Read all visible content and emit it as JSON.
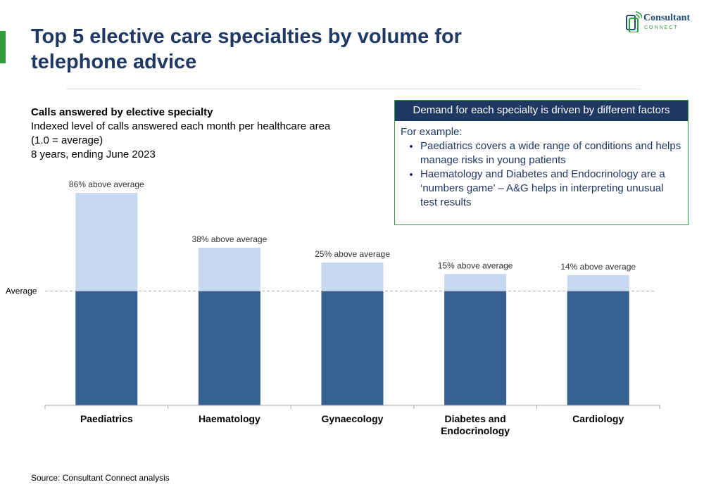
{
  "header": {
    "title": "Top 5 elective care specialties by volume for telephone advice",
    "logo_word": "Consultant",
    "logo_sub": "CONNECT"
  },
  "subtitle": {
    "line1": "Calls answered by elective specialty",
    "line2": "Indexed level of calls answered each month per healthcare area",
    "line3": "(1.0 = average)",
    "line4": "8 years, ending June 2023"
  },
  "callout": {
    "heading": "Demand for each specialty is driven by different factors",
    "intro": "For example:",
    "bullets": [
      "Paediatrics covers a wide range of conditions and helps manage risks in young patients",
      "Haematology and Diabetes and Endocrinology are a ‘numbers game’ – A&G helps in interpreting unusual test results"
    ]
  },
  "chart_data": {
    "type": "bar",
    "categories": [
      "Paediatrics",
      "Haematology",
      "Gynaecology",
      "Diabetes and Endocrinology",
      "Cardiology"
    ],
    "category_lines": [
      [
        "Paediatrics"
      ],
      [
        "Haematology"
      ],
      [
        "Gynaecology"
      ],
      [
        "Diabetes and",
        "Endocrinology"
      ],
      [
        "Cardiology"
      ]
    ],
    "values": [
      1.86,
      1.38,
      1.25,
      1.15,
      1.14
    ],
    "data_labels": [
      "86% above average",
      "38% above average",
      "25% above average",
      "15% above average",
      "14% above average"
    ],
    "reference_line": {
      "value": 1.0,
      "label": "Average"
    },
    "ylim": [
      0,
      1.86
    ],
    "colors": {
      "base": "#376092",
      "above": "#c6d9f0",
      "refline": "#a6a6a6",
      "axis": "#a6a6a6"
    },
    "grid": false,
    "legend": "none"
  },
  "footer": {
    "source": "Source: Consultant Connect analysis"
  }
}
